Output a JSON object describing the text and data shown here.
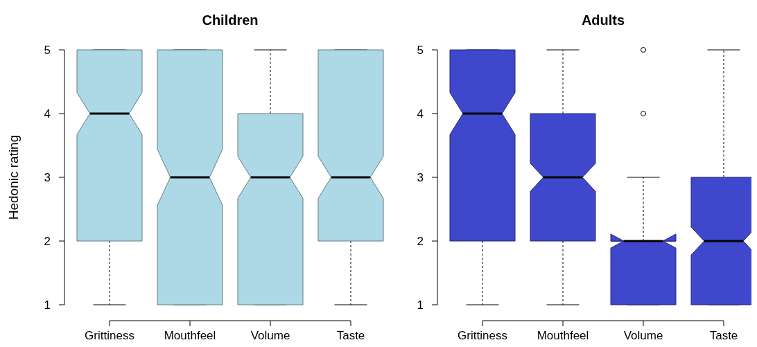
{
  "chart_data": [
    {
      "type": "box",
      "title": "Children",
      "ylabel": "Hedonic rating",
      "categories": [
        "Grittiness",
        "Mouthfeel",
        "Volume",
        "Taste"
      ],
      "ylim": [
        1,
        5
      ],
      "yticks": [
        1,
        2,
        3,
        4,
        5
      ],
      "series": [
        {
          "color": "#add8e6",
          "boxes": [
            {
              "low": 1,
              "q1": 2,
              "median": 4,
              "q3": 5,
              "high": 5
            },
            {
              "low": 1,
              "q1": 1,
              "median": 3,
              "q3": 5,
              "high": 5
            },
            {
              "low": 1,
              "q1": 1,
              "median": 3,
              "q3": 4,
              "high": 5
            },
            {
              "low": 1,
              "q1": 2,
              "median": 3,
              "q3": 5,
              "high": 5
            }
          ]
        }
      ]
    },
    {
      "type": "box",
      "title": "Adults",
      "categories": [
        "Grittiness",
        "Mouthfeel",
        "Volume",
        "Taste"
      ],
      "ylim": [
        1,
        5
      ],
      "yticks": [
        1,
        2,
        3,
        4,
        5
      ],
      "series": [
        {
          "color": "#3f48cc",
          "boxes": [
            {
              "low": 1,
              "q1": 2,
              "median": 4,
              "q3": 5,
              "high": 5
            },
            {
              "low": 1,
              "q1": 2,
              "median": 3,
              "q3": 4,
              "high": 5
            },
            {
              "low": 1,
              "q1": 1,
              "median": 2,
              "q3": 2,
              "high": 3,
              "outliers": [
                4,
                5
              ]
            },
            {
              "low": 1,
              "q1": 1,
              "median": 2,
              "q3": 3,
              "high": 5
            }
          ]
        }
      ]
    }
  ]
}
